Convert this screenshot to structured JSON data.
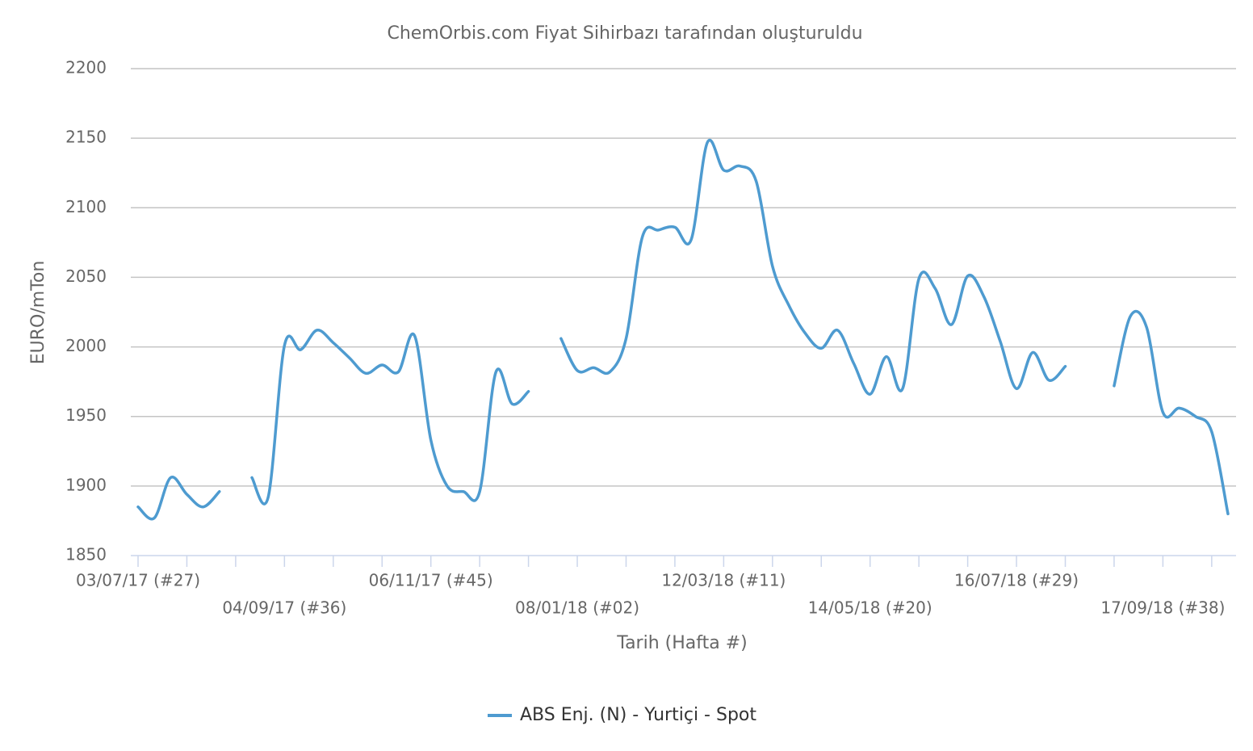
{
  "chart_data": {
    "type": "line",
    "title": "ChemOrbis.com Fiyat Sihirbazı tarafından oluşturuldu",
    "y_label": "EURO/mTon",
    "x_label": "Tarih (Hafta #)",
    "categories": [
      "03/07/17 (#27)",
      null,
      null,
      null,
      null,
      null,
      null,
      null,
      null,
      "04/09/17 (#36)",
      null,
      null,
      null,
      null,
      null,
      null,
      null,
      null,
      "06/11/17 (#45)",
      null,
      null,
      null,
      null,
      null,
      null,
      null,
      null,
      "08/01/18 (#02)",
      null,
      null,
      null,
      null,
      null,
      null,
      null,
      null,
      "12/03/18 (#11)",
      null,
      null,
      null,
      null,
      null,
      null,
      null,
      null,
      "14/05/18 (#20)",
      null,
      null,
      null,
      null,
      null,
      null,
      null,
      null,
      "16/07/18 (#29)",
      null,
      null,
      null,
      null,
      null,
      null,
      null,
      null,
      "17/09/18 (#38)",
      null,
      null,
      null,
      null
    ],
    "series": [
      {
        "name": "ABS Enj. (N) - Yurtiçi - Spot",
        "color": "#4e9bd0",
        "values": [
          1885,
          1877,
          1906,
          1894,
          1885,
          1896,
          null,
          1906,
          1892,
          2001,
          1998,
          2012,
          2003,
          1992,
          1981,
          1987,
          1982,
          2008,
          1933,
          1900,
          1896,
          1896,
          1982,
          1959,
          1968,
          null,
          2006,
          1983,
          1985,
          1982,
          2006,
          2079,
          2084,
          2086,
          2077,
          2147,
          2127,
          2130,
          2119,
          2058,
          2030,
          2010,
          1999,
          2012,
          1988,
          1966,
          1993,
          1970,
          2049,
          2042,
          2016,
          2051,
          2036,
          2004,
          1970,
          1996,
          1976,
          1986,
          null,
          null,
          1972,
          2022,
          2014,
          1953,
          1956,
          1950,
          1939,
          1880
        ]
      }
    ],
    "ylim": [
      1850,
      2200
    ],
    "yticks": [
      1850,
      1900,
      1950,
      2000,
      2050,
      2100,
      2150,
      2200
    ],
    "grid": true
  }
}
